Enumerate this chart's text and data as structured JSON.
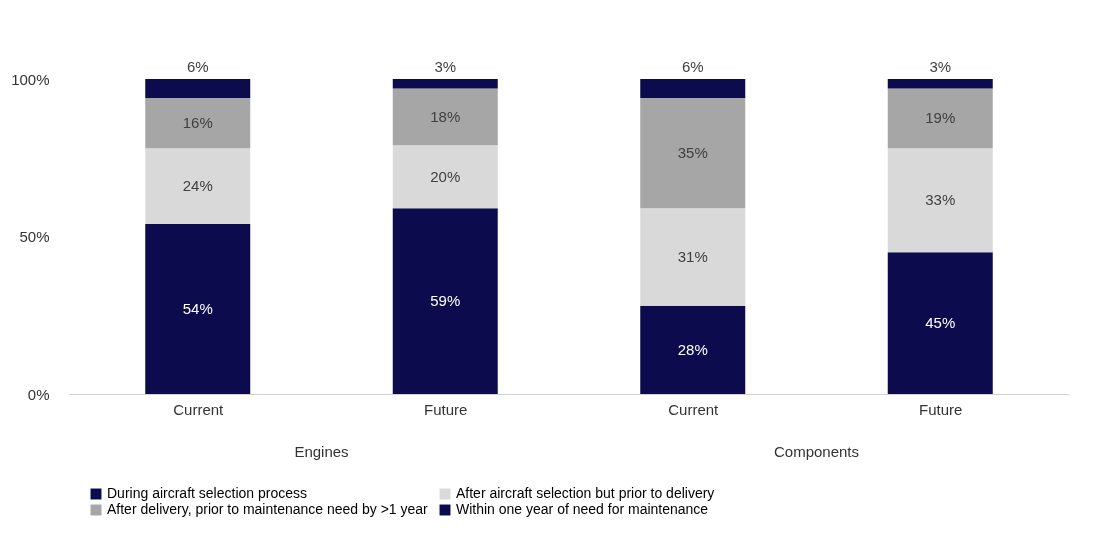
{
  "chart_data": {
    "type": "bar",
    "stacked": true,
    "categories": [
      "Current",
      "Future",
      "Current",
      "Future"
    ],
    "series": [
      {
        "name": "During aircraft selection process",
        "color": "#0b0b4d",
        "values": [
          54,
          59,
          28,
          45
        ],
        "value_labels": [
          "54%",
          "59%",
          "28%",
          "45%"
        ]
      },
      {
        "name": "After aircraft selection but prior to delivery",
        "color": "#d9d9d9",
        "values": [
          24,
          20,
          31,
          33
        ],
        "value_labels": [
          "24%",
          "20%",
          "31%",
          "33%"
        ]
      },
      {
        "name": "After delivery, prior to maintenance need by >1 year",
        "color": "#a6a6a6",
        "values": [
          16,
          18,
          35,
          19
        ],
        "value_labels": [
          "16%",
          "18%",
          "35%",
          "19%"
        ]
      },
      {
        "name": "Within one year of need for maintenance",
        "color": "#0b0b4d",
        "values": [
          6,
          3,
          6,
          3
        ],
        "value_labels": [
          "6%",
          "3%",
          "6%",
          "3%"
        ]
      }
    ],
    "ylim": [
      0,
      100
    ],
    "yticks": [
      {
        "value": 0,
        "label": "0%"
      },
      {
        "value": 50,
        "label": "50%"
      },
      {
        "value": 100,
        "label": "100%"
      }
    ],
    "annotations": [
      "Engines",
      "Components"
    ],
    "grid": false,
    "legend": "bottom"
  }
}
